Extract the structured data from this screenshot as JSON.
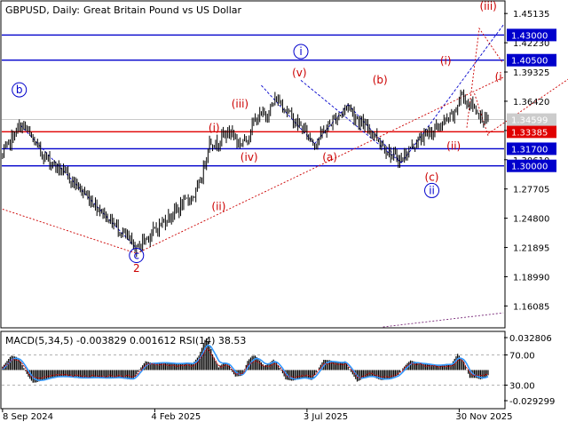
{
  "header": {
    "symbol": "GBPUSD, Daily:",
    "description": "Great Britain Pound vs US Dollar"
  },
  "colors": {
    "price": "#000000",
    "level_blue": "#0000cc",
    "level_red": "#e00000",
    "label_blue": "#0000cc",
    "label_red": "#cc0000",
    "axis": "#000000",
    "macd_hist": "#000000",
    "macd_signal": "#3399ff",
    "rsi": "#cc0000",
    "current": "#aaaaaa"
  },
  "chart_data": [
    {
      "type": "line",
      "name": "price-panel",
      "ylim": [
        1.14,
        1.463
      ],
      "x_count": 330,
      "price_anchors": [
        [
          0,
          1.31
        ],
        [
          3,
          1.318
        ],
        [
          7,
          1.33
        ],
        [
          11,
          1.338
        ],
        [
          14,
          1.34
        ],
        [
          18,
          1.33
        ],
        [
          24,
          1.316
        ],
        [
          30,
          1.306
        ],
        [
          38,
          1.296
        ],
        [
          46,
          1.285
        ],
        [
          54,
          1.272
        ],
        [
          62,
          1.26
        ],
        [
          70,
          1.247
        ],
        [
          78,
          1.235
        ],
        [
          84,
          1.224
        ],
        [
          88,
          1.217
        ],
        [
          92,
          1.225
        ],
        [
          100,
          1.236
        ],
        [
          108,
          1.248
        ],
        [
          116,
          1.258
        ],
        [
          123,
          1.268
        ],
        [
          127,
          1.272
        ],
        [
          131,
          1.29
        ],
        [
          136,
          1.325
        ],
        [
          140,
          1.321
        ],
        [
          145,
          1.331
        ],
        [
          151,
          1.334
        ],
        [
          155,
          1.322
        ],
        [
          160,
          1.326
        ],
        [
          166,
          1.346
        ],
        [
          170,
          1.35
        ],
        [
          174,
          1.352
        ],
        [
          180,
          1.367
        ],
        [
          186,
          1.357
        ],
        [
          192,
          1.344
        ],
        [
          198,
          1.336
        ],
        [
          205,
          1.322
        ],
        [
          211,
          1.334
        ],
        [
          217,
          1.345
        ],
        [
          223,
          1.353
        ],
        [
          227,
          1.361
        ],
        [
          231,
          1.35
        ],
        [
          237,
          1.34
        ],
        [
          243,
          1.334
        ],
        [
          249,
          1.322
        ],
        [
          256,
          1.31
        ],
        [
          262,
          1.306
        ],
        [
          268,
          1.318
        ],
        [
          274,
          1.326
        ],
        [
          280,
          1.333
        ],
        [
          286,
          1.338
        ],
        [
          292,
          1.345
        ],
        [
          297,
          1.351
        ],
        [
          301,
          1.371
        ],
        [
          305,
          1.364
        ],
        [
          309,
          1.359
        ],
        [
          313,
          1.352
        ],
        [
          316,
          1.346
        ],
        [
          319,
          1.344
        ]
      ],
      "levels": [
        {
          "value": 1.43,
          "label": "1.43000",
          "color": "#0000cc"
        },
        {
          "value": 1.405,
          "label": "1.40500",
          "color": "#0000cc"
        },
        {
          "value": 1.33385,
          "label": "1.33385",
          "color": "#e00000"
        },
        {
          "value": 1.317,
          "label": "1.31700",
          "color": "#0000cc"
        },
        {
          "value": 1.3,
          "label": "1.30000",
          "color": "#0000cc"
        }
      ],
      "current_price": {
        "value": 1.34599,
        "label": "1.34599"
      },
      "y_ticks": [
        "1.45135",
        "1.42230",
        "1.39325",
        "1.36420",
        "1.33515",
        "1.30610",
        "1.27705",
        "1.24800",
        "1.21895",
        "1.18990",
        "1.16085"
      ],
      "y_tick_values": [
        1.45135,
        1.4223,
        1.39325,
        1.3642,
        1.33515,
        1.3061,
        1.27705,
        1.248,
        1.21895,
        1.1899,
        1.16085
      ],
      "x_ticks": [
        {
          "index": 0,
          "label": "8 Sep 2024"
        },
        {
          "index": 100,
          "label": "4 Feb 2025"
        },
        {
          "index": 200,
          "label": "3 Jul 2025"
        },
        {
          "index": 300,
          "label": "30 Nov 2025"
        }
      ],
      "wave_labels": [
        {
          "text": "b",
          "x": 11,
          "y": 1.372,
          "color": "#0000cc",
          "circled": true
        },
        {
          "text": "c",
          "x": 88,
          "y": 1.2075,
          "color": "#0000cc",
          "circled": true
        },
        {
          "text": "2",
          "x": 88,
          "y": 1.1945,
          "color": "#cc0000",
          "circled": false
        },
        {
          "text": "(i)",
          "x": 139,
          "y": 1.334,
          "color": "#cc0000",
          "circled": false
        },
        {
          "text": "(ii)",
          "x": 142,
          "y": 1.256,
          "color": "#cc0000",
          "circled": false
        },
        {
          "text": "(iii)",
          "x": 156,
          "y": 1.358,
          "color": "#cc0000",
          "circled": false
        },
        {
          "text": "(iv)",
          "x": 162,
          "y": 1.305,
          "color": "#cc0000",
          "circled": false
        },
        {
          "text": "(v)",
          "x": 195,
          "y": 1.389,
          "color": "#cc0000",
          "circled": false
        },
        {
          "text": "i",
          "x": 196,
          "y": 1.41,
          "color": "#0000cc",
          "circled": true
        },
        {
          "text": "(a)",
          "x": 215,
          "y": 1.305,
          "color": "#cc0000",
          "circled": false
        },
        {
          "text": "(b)",
          "x": 248,
          "y": 1.382,
          "color": "#cc0000",
          "circled": false
        },
        {
          "text": "(c)",
          "x": 282,
          "y": 1.285,
          "color": "#cc0000",
          "circled": false
        },
        {
          "text": "ii",
          "x": 282,
          "y": 1.272,
          "color": "#0000cc",
          "circled": true
        },
        {
          "text": "(i)",
          "x": 337,
          "y": 1.401,
          "color": "#cc0000",
          "circled": false
        },
        {
          "text": "(ii)",
          "x": 352,
          "y": 1.316,
          "color": "#cc0000",
          "circled": false
        },
        {
          "text": "(iii)",
          "x": 417,
          "y": 1.455,
          "color": "#cc0000",
          "circled": false
        },
        {
          "text": "(i",
          "x": 436,
          "y": 1.385,
          "color": "#cc0000",
          "circled": false
        }
      ]
    },
    {
      "type": "area",
      "name": "indicator-panel",
      "title": "MACD(5,34,5) -0.003829 0.001612 RSI(14) 38.53",
      "y_ticks": [
        {
          "label": "0.032806",
          "level": 1.0
        },
        {
          "label": "70.00",
          "level": 0.7
        },
        {
          "label": "30.00",
          "level": 0.3
        },
        {
          "label": "-0.029299",
          "level": 0.0
        }
      ]
    }
  ]
}
